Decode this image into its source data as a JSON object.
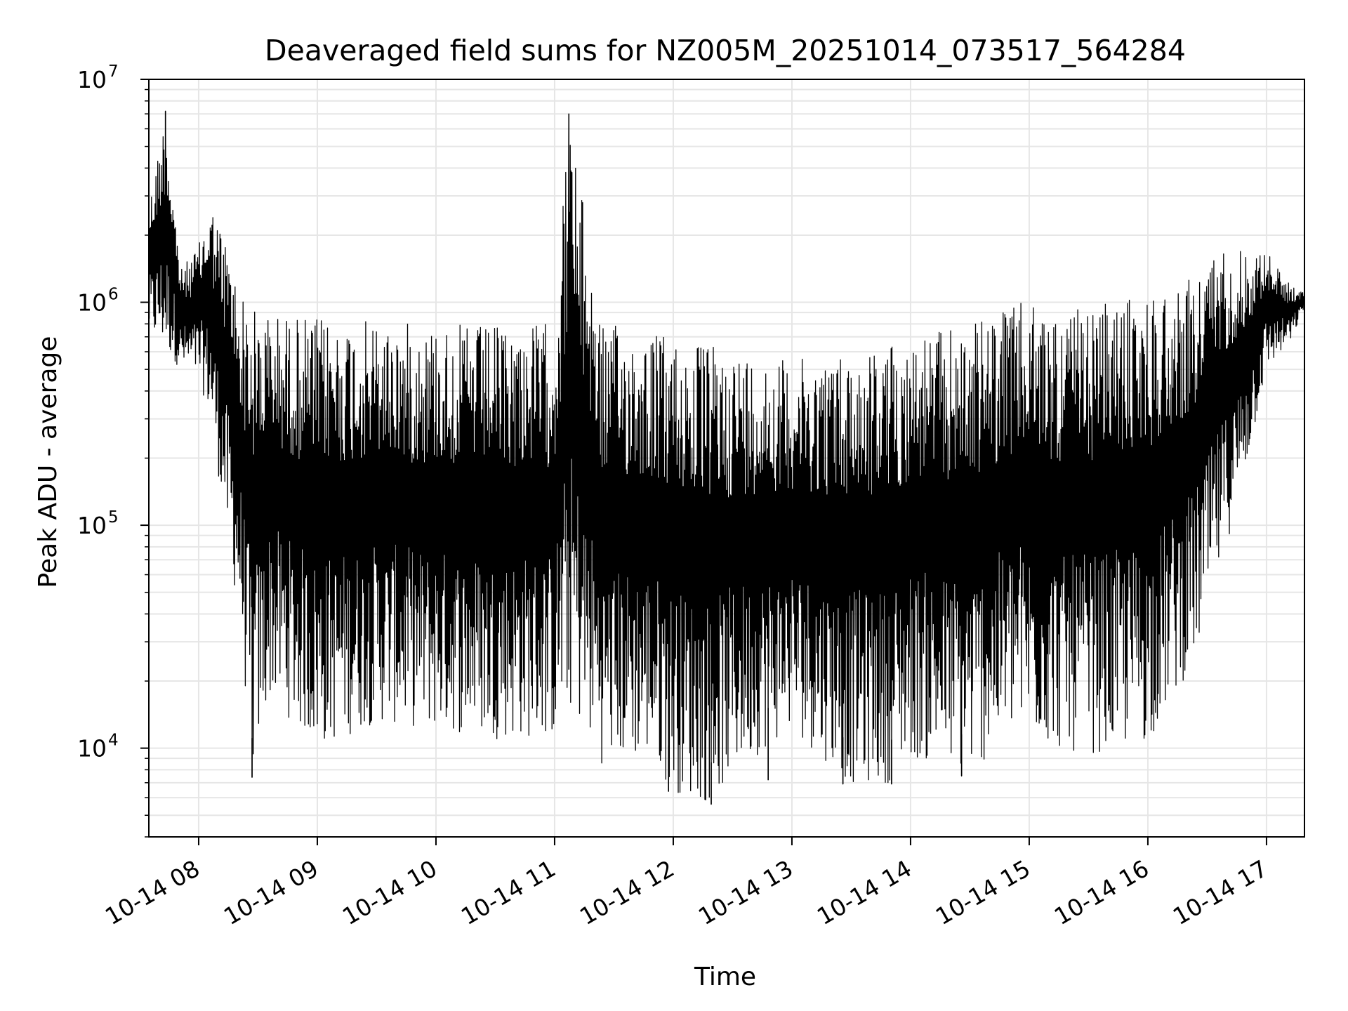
{
  "chart_data": {
    "type": "line",
    "title": "Deaveraged field sums for NZ005M_20251014_073517_564284",
    "xlabel": "Time",
    "ylabel": "Peak ADU - average",
    "yscale": "log",
    "ylim": [
      4000,
      10000000
    ],
    "xlim_hours": [
      7.58,
      17.32
    ],
    "grid": true,
    "line_color": "#000000",
    "x_ticks": [
      {
        "hour": 8,
        "label": "10-14 08"
      },
      {
        "hour": 9,
        "label": "10-14 09"
      },
      {
        "hour": 10,
        "label": "10-14 10"
      },
      {
        "hour": 11,
        "label": "10-14 11"
      },
      {
        "hour": 12,
        "label": "10-14 12"
      },
      {
        "hour": 13,
        "label": "10-14 13"
      },
      {
        "hour": 14,
        "label": "10-14 14"
      },
      {
        "hour": 15,
        "label": "10-14 15"
      },
      {
        "hour": 16,
        "label": "10-14 16"
      },
      {
        "hour": 17,
        "label": "10-14 17"
      }
    ],
    "y_ticks": [
      {
        "value": 10000,
        "base": "10",
        "exp": "4"
      },
      {
        "value": 100000,
        "base": "10",
        "exp": "5"
      },
      {
        "value": 1000000,
        "base": "10",
        "exp": "6"
      },
      {
        "value": 10000000,
        "base": "10",
        "exp": "7"
      }
    ],
    "series": [
      {
        "name": "field sums",
        "envelope": [
          {
            "hour": 7.58,
            "upper": 2800000,
            "lower": 700000
          },
          {
            "hour": 7.72,
            "upper": 7200000,
            "lower": 600000
          },
          {
            "hour": 7.85,
            "upper": 1400000,
            "lower": 500000
          },
          {
            "hour": 8.0,
            "upper": 1800000,
            "lower": 450000
          },
          {
            "hour": 8.1,
            "upper": 2800000,
            "lower": 300000
          },
          {
            "hour": 8.25,
            "upper": 1800000,
            "lower": 80000
          },
          {
            "hour": 8.35,
            "upper": 1100000,
            "lower": 35000
          },
          {
            "hour": 8.45,
            "upper": 950000,
            "lower": 7400
          },
          {
            "hour": 8.6,
            "upper": 900000,
            "lower": 17000
          },
          {
            "hour": 9.0,
            "upper": 850000,
            "lower": 9800
          },
          {
            "hour": 9.5,
            "upper": 820000,
            "lower": 13000
          },
          {
            "hour": 10.0,
            "upper": 800000,
            "lower": 12000
          },
          {
            "hour": 10.5,
            "upper": 780000,
            "lower": 11000
          },
          {
            "hour": 11.0,
            "upper": 820000,
            "lower": 11000
          },
          {
            "hour": 11.12,
            "upper": 7000000,
            "lower": 15000
          },
          {
            "hour": 11.4,
            "upper": 800000,
            "lower": 8500
          },
          {
            "hour": 11.8,
            "upper": 750000,
            "lower": 9000
          },
          {
            "hour": 12.0,
            "upper": 700000,
            "lower": 6400
          },
          {
            "hour": 12.3,
            "upper": 650000,
            "lower": 5600
          },
          {
            "hour": 12.6,
            "upper": 600000,
            "lower": 8500
          },
          {
            "hour": 13.0,
            "upper": 550000,
            "lower": 12000
          },
          {
            "hour": 13.5,
            "upper": 600000,
            "lower": 6900
          },
          {
            "hour": 13.8,
            "upper": 650000,
            "lower": 6900
          },
          {
            "hour": 14.0,
            "upper": 700000,
            "lower": 9000
          },
          {
            "hour": 14.5,
            "upper": 800000,
            "lower": 7500
          },
          {
            "hour": 14.9,
            "upper": 1000000,
            "lower": 12000
          },
          {
            "hour": 15.3,
            "upper": 900000,
            "lower": 9500
          },
          {
            "hour": 15.7,
            "upper": 1000000,
            "lower": 9500
          },
          {
            "hour": 16.0,
            "upper": 1100000,
            "lower": 10500
          },
          {
            "hour": 16.4,
            "upper": 1300000,
            "lower": 25000
          },
          {
            "hour": 16.6,
            "upper": 1800000,
            "lower": 60000
          },
          {
            "hour": 16.85,
            "upper": 1700000,
            "lower": 200000
          },
          {
            "hour": 17.0,
            "upper": 1700000,
            "lower": 500000
          },
          {
            "hour": 17.2,
            "upper": 1200000,
            "lower": 650000
          },
          {
            "hour": 17.32,
            "upper": 1100000,
            "lower": 950000
          }
        ],
        "spikes": [
          {
            "hour": 7.72,
            "value": 7200000
          },
          {
            "hour": 11.12,
            "value": 7000000
          },
          {
            "hour": 8.45,
            "value": 7400
          },
          {
            "hour": 12.32,
            "value": 5600
          },
          {
            "hour": 11.96,
            "value": 6400
          },
          {
            "hour": 13.43,
            "value": 6900
          },
          {
            "hour": 13.84,
            "value": 6900
          },
          {
            "hour": 12.8,
            "value": 7200
          },
          {
            "hour": 14.43,
            "value": 7500
          }
        ]
      }
    ]
  }
}
